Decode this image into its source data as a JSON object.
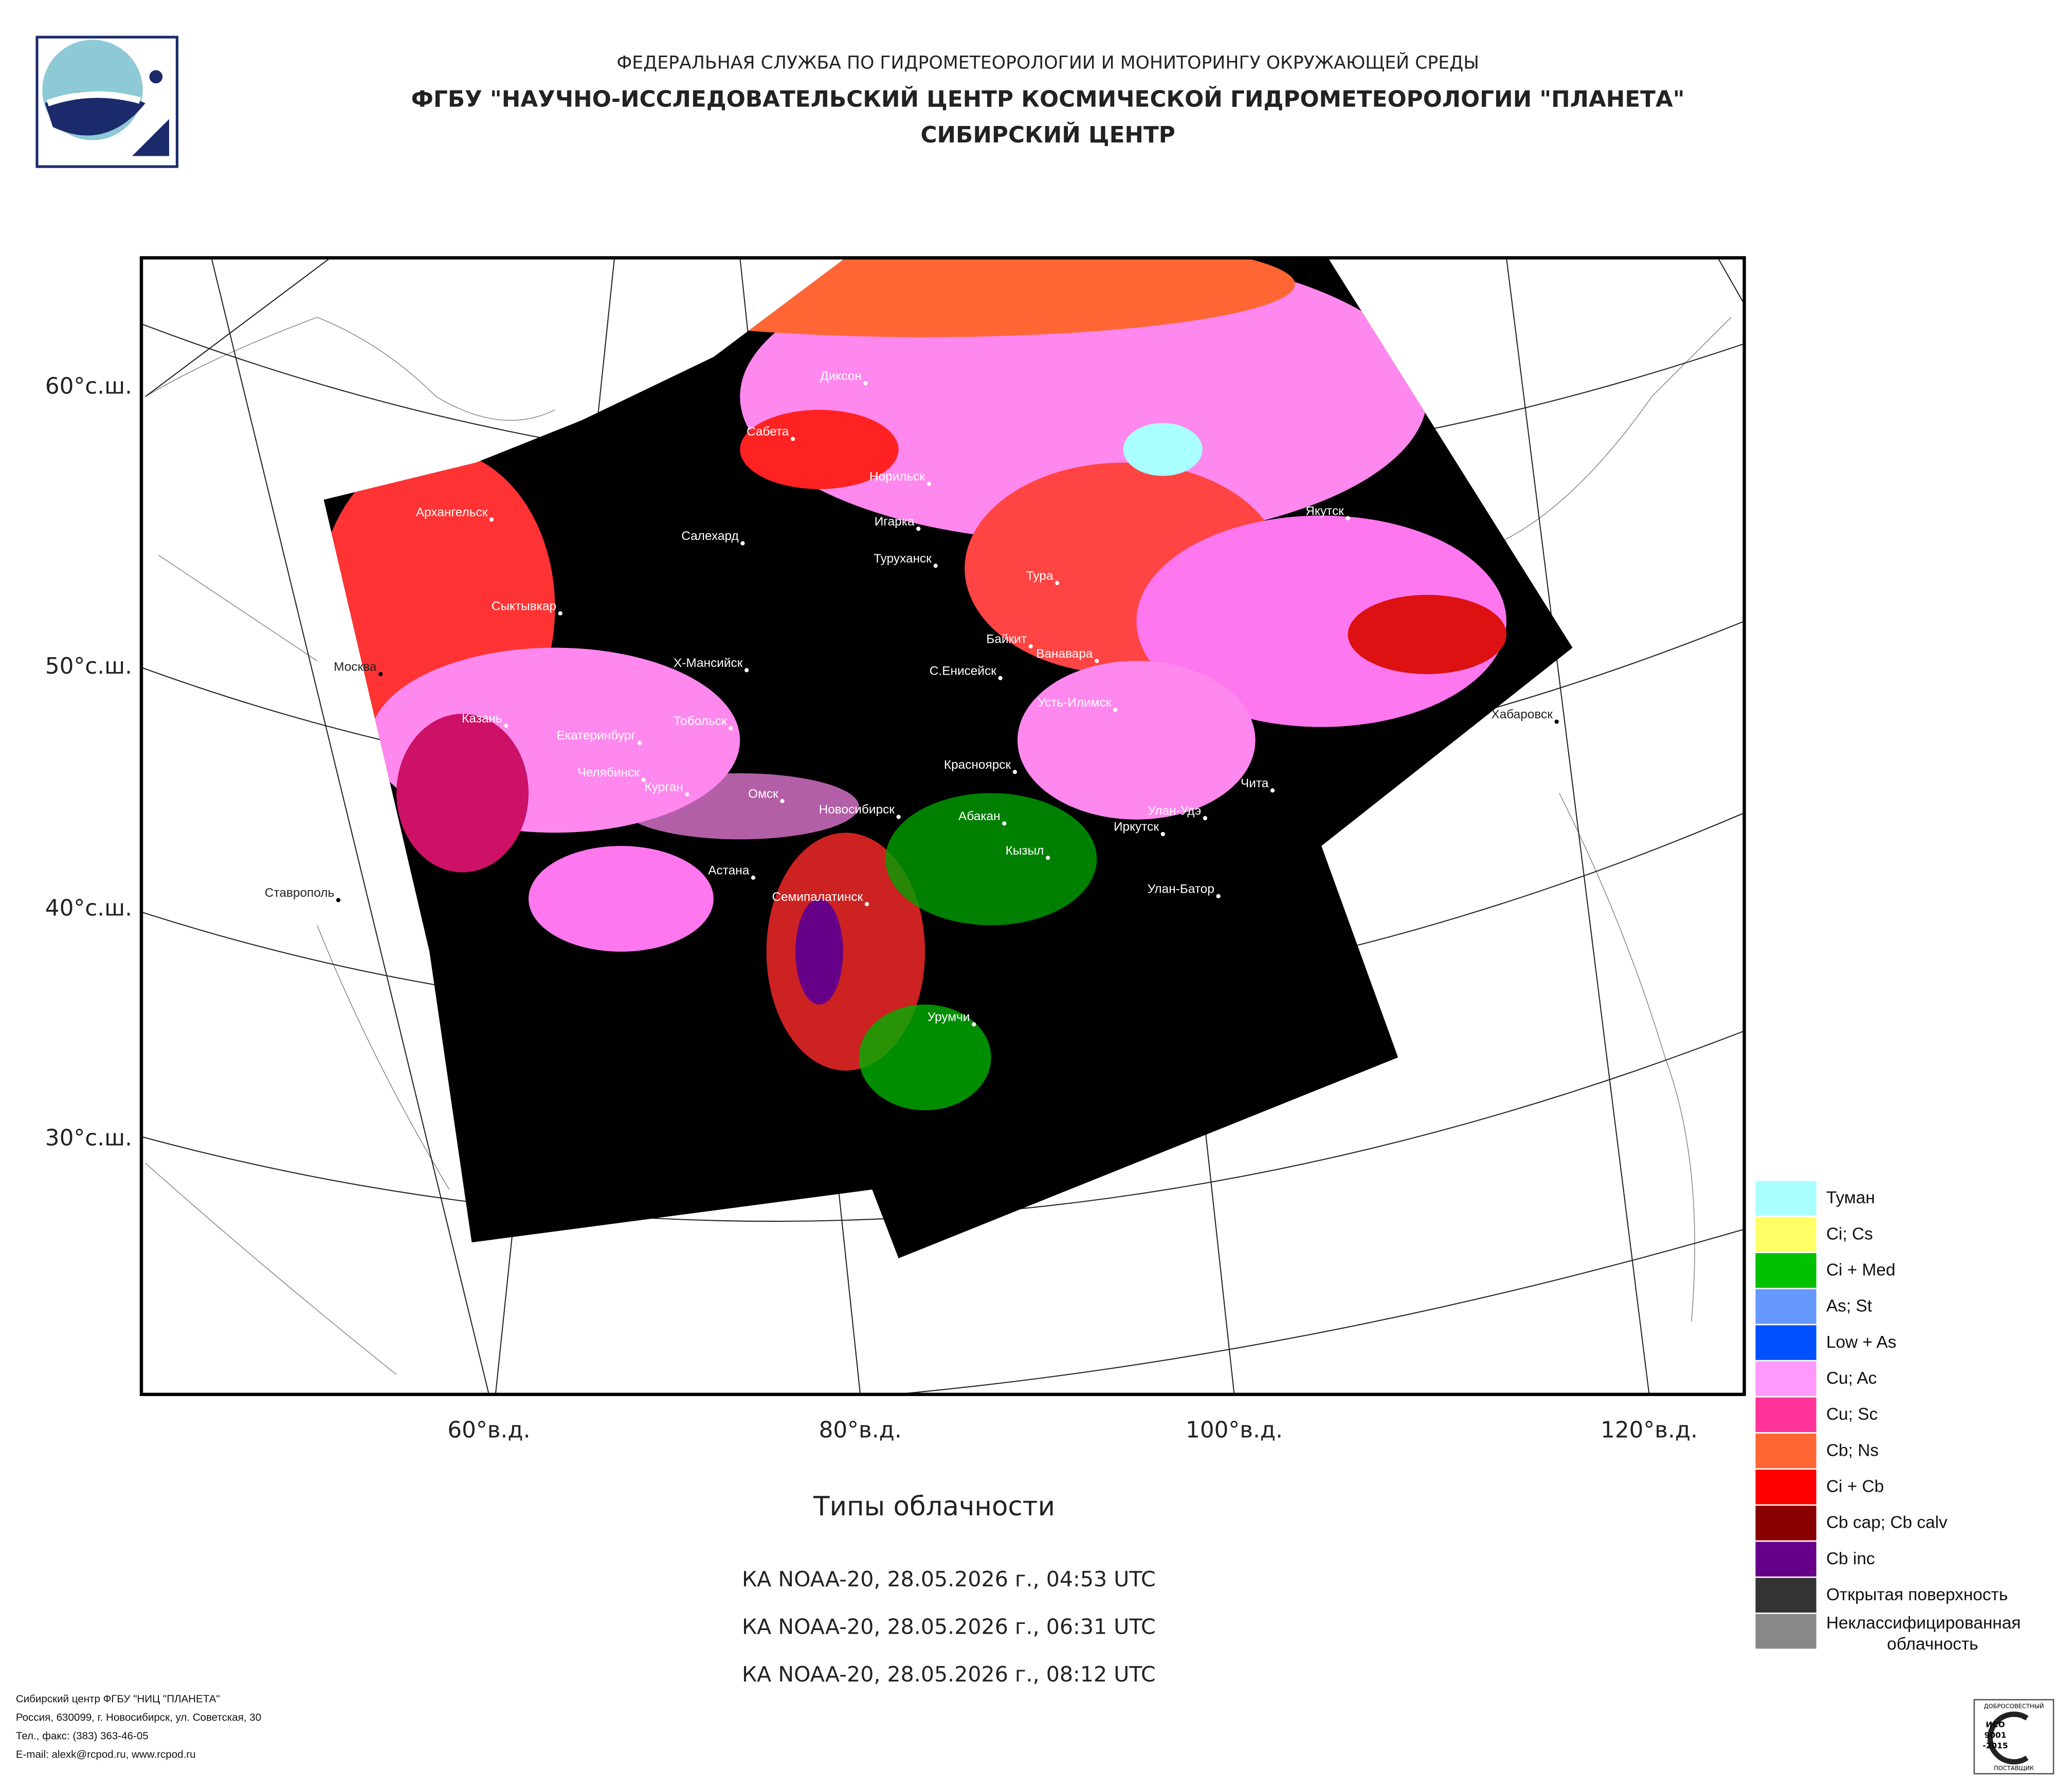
{
  "header": {
    "agency": "ФЕДЕРАЛЬНАЯ СЛУЖБА ПО ГИДРОМЕТЕОРОЛОГИИ И МОНИТОРИНГУ ОКРУЖАЮЩЕЙ СРЕДЫ",
    "institute": "ФГБУ \"НАУЧНО-ИССЛЕДОВАТЕЛЬСКИЙ ЦЕНТР КОСМИЧЕСКОЙ ГИДРОМЕТЕОРОЛОГИИ \"ПЛАНЕТА\"",
    "center": "СИБИРСКИЙ ЦЕНТР"
  },
  "map": {
    "lat_labels": [
      "60°с.ш.",
      "50°с.ш.",
      "40°с.ш.",
      "30°с.ш."
    ],
    "lon_labels": [
      "60°в.д.",
      "80°в.д.",
      "100°в.д.",
      "120°в.д."
    ],
    "cities": [
      "Диксон",
      "Сабета",
      "Норильск",
      "Игарка",
      "Салехард",
      "Туруханск",
      "Тура",
      "Архангельск",
      "Якутск",
      "Сыктывкар",
      "Байкит",
      "Ванавара",
      "Х-Мансийск",
      "С.Енисейск",
      "Москва",
      "Усть-Илимск",
      "Хабаровск",
      "Казань",
      "Тобольск",
      "Екатеринбург",
      "Красноярск",
      "Челябинск",
      "Чита",
      "Курган",
      "Омск",
      "Новосибирск",
      "Абакан",
      "Улан-Удэ",
      "Иркутск",
      "Кызыл",
      "Ставрополь",
      "Улан-Батор",
      "Астана",
      "Семипалатинск",
      "Урумчи"
    ]
  },
  "legend": [
    {
      "label": "Туман",
      "color": "#aaffff"
    },
    {
      "label": "Ci; Cs",
      "color": "#ffff66"
    },
    {
      "label": "Ci + Med",
      "color": "#00c000"
    },
    {
      "label": "As; St",
      "color": "#6699ff"
    },
    {
      "label": "Low + As",
      "color": "#0050ff"
    },
    {
      "label": "Cu; Ac",
      "color": "#ff99ff"
    },
    {
      "label": "Cu; Sc",
      "color": "#ff3399"
    },
    {
      "label": "Cb; Ns",
      "color": "#ff6633"
    },
    {
      "label": "Ci + Cb",
      "color": "#ff0000"
    },
    {
      "label": "Cb cap; Cb calv",
      "color": "#880000"
    },
    {
      "label": "Cb inc",
      "color": "#660088"
    },
    {
      "label": "Открытая поверхность",
      "color": "#333333"
    },
    {
      "label": "Неклассифицированная облачность",
      "color": "#888888"
    }
  ],
  "caption": {
    "title": "Типы облачности",
    "passes": [
      "КА NOAA-20, 28.05.2026 г., 04:53 UTC",
      "КА NOAA-20, 28.05.2026 г., 06:31 UTC",
      "КА NOAA-20, 28.05.2026 г., 08:12 UTC"
    ]
  },
  "footer": [
    "Сибирский центр ФГБУ \"НИЦ \"ПЛАНЕТА\"",
    "Россия, 630099, г. Новосибирск, ул. Советская, 30",
    "Тел., факс: (383) 363-46-05",
    "E-mail: alexk@rcpod.ru, www.rcpod.ru"
  ],
  "badge": {
    "top": "ДОБРОСОВЕСТНЫЙ",
    "mark": "ИСО",
    "number": "9001",
    "year": "-2015",
    "bottom": "ПОСТАВЩИК"
  }
}
